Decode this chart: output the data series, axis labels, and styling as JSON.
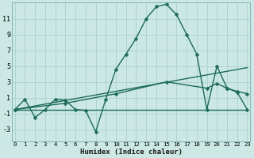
{
  "xlabel": "Humidex (Indice chaleur)",
  "background_color": "#cce8e4",
  "grid_color": "#b0d4d0",
  "line_color": "#1a6b5a",
  "x_ticks": [
    0,
    1,
    2,
    3,
    4,
    5,
    6,
    7,
    8,
    9,
    10,
    11,
    12,
    13,
    14,
    15,
    16,
    17,
    18,
    19,
    20,
    21,
    22,
    23
  ],
  "y_ticks": [
    -3,
    -1,
    1,
    3,
    5,
    7,
    9,
    11
  ],
  "ylim": [
    -4.5,
    13.0
  ],
  "xlim": [
    -0.3,
    23.3
  ],
  "series1": {
    "x": [
      0,
      1,
      2,
      3,
      4,
      5,
      6,
      7,
      8,
      9,
      10,
      11,
      12,
      13,
      14,
      15,
      16,
      17,
      18,
      19,
      20,
      21,
      22,
      23
    ],
    "y": [
      -0.5,
      0.8,
      -1.5,
      -0.5,
      0.8,
      0.7,
      -0.5,
      -0.6,
      -3.3,
      0.8,
      4.6,
      6.5,
      8.5,
      11.0,
      12.5,
      12.8,
      11.5,
      9.0,
      6.5,
      -0.5,
      5.0,
      2.2,
      1.7,
      -0.5
    ]
  },
  "series2": {
    "x": [
      0,
      23
    ],
    "y": [
      -0.5,
      -0.5
    ]
  },
  "series3": {
    "x": [
      0,
      5,
      10,
      15,
      19,
      20,
      21,
      22,
      23
    ],
    "y": [
      -0.5,
      0.3,
      1.5,
      3.0,
      2.2,
      2.8,
      2.2,
      1.8,
      1.5
    ]
  },
  "series4": {
    "x": [
      0,
      23
    ],
    "y": [
      -0.5,
      4.8
    ]
  }
}
